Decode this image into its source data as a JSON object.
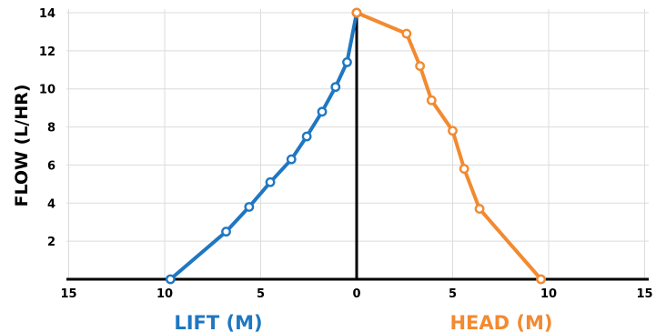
{
  "chart_data": {
    "type": "line",
    "ylabel": "FLOW (L/HR)",
    "xlabel_left": "LIFT (M)",
    "xlabel_right": "HEAD (M)",
    "ylim": [
      0,
      14
    ],
    "y_ticks": [
      "2",
      "4",
      "6",
      "8",
      "10",
      "12",
      "14"
    ],
    "xlim_left": [
      15,
      0
    ],
    "xlim_right": [
      0,
      15
    ],
    "x_ticks_left": [
      "15",
      "10",
      "5",
      "0"
    ],
    "x_ticks_right": [
      "5",
      "10",
      "15"
    ],
    "grid": true,
    "series": [
      {
        "key": "lift",
        "color": "#1f77c1",
        "x": [
          9.7,
          6.8,
          5.6,
          4.5,
          3.4,
          2.6,
          1.8,
          1.1,
          0.5,
          0.0
        ],
        "y": [
          0.0,
          2.5,
          3.8,
          5.1,
          6.3,
          7.5,
          8.8,
          10.1,
          11.4,
          14.0
        ]
      },
      {
        "key": "head",
        "color": "#f28a30",
        "x": [
          0.0,
          2.6,
          3.3,
          3.9,
          5.0,
          5.6,
          6.4,
          9.6
        ],
        "y": [
          14.0,
          12.9,
          11.2,
          9.4,
          7.8,
          5.8,
          3.7,
          0.0
        ]
      }
    ]
  }
}
